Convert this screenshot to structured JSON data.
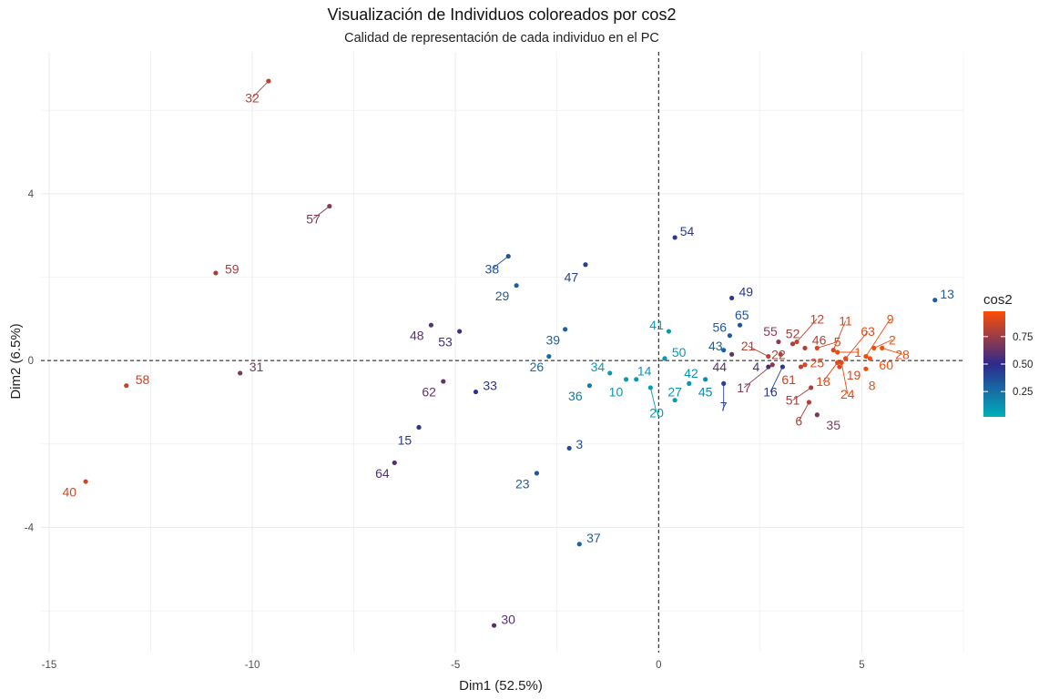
{
  "chart_data": {
    "type": "scatter",
    "title": "Visualización de Individuos coloreados por cos2",
    "subtitle": "Calidad de representación de cada individuo en el PC",
    "xlabel": "Dim1 (52.5%)",
    "ylabel": "Dim2 (6.5%)",
    "xlim": [
      -15.2,
      7.5
    ],
    "ylim": [
      -7.0,
      7.4
    ],
    "x_ticks": [
      -15,
      -10,
      -5,
      0,
      5
    ],
    "y_ticks": [
      -4,
      0,
      4
    ],
    "grid": true,
    "reference_lines": {
      "x": 0,
      "y": 0
    },
    "legend": {
      "title": "cos2",
      "position": "right",
      "ticks": [
        "0.25",
        "0.50",
        "0.75"
      ],
      "tick_values": [
        0.25,
        0.5,
        0.75
      ],
      "range": [
        0.02,
        0.98
      ],
      "gradient": [
        "#00AFBB",
        "#2E2A8C",
        "#FC4E07"
      ]
    },
    "points": [
      {
        "label": "32",
        "x": -9.6,
        "y": 6.7,
        "cos2": 0.82,
        "lx": -10.0,
        "ly": 6.3
      },
      {
        "label": "57",
        "x": -8.1,
        "y": 3.7,
        "cos2": 0.7,
        "lx": -8.5,
        "ly": 3.4
      },
      {
        "label": "59",
        "x": -10.9,
        "y": 2.1,
        "cos2": 0.78,
        "lx": -10.5,
        "ly": 2.2
      },
      {
        "label": "58",
        "x": -13.1,
        "y": -0.6,
        "cos2": 0.84,
        "lx": -12.7,
        "ly": -0.45
      },
      {
        "label": "31",
        "x": -10.3,
        "y": -0.3,
        "cos2": 0.68,
        "lx": -9.9,
        "ly": -0.15
      },
      {
        "label": "40",
        "x": -14.1,
        "y": -2.9,
        "cos2": 0.88,
        "lx": -14.5,
        "ly": -3.15
      },
      {
        "label": "38",
        "x": -3.7,
        "y": 2.5,
        "cos2": 0.35,
        "lx": -4.1,
        "ly": 2.2
      },
      {
        "label": "29",
        "x": -3.5,
        "y": 1.8,
        "cos2": 0.32,
        "lx": -3.85,
        "ly": 1.55
      },
      {
        "label": "47",
        "x": -1.8,
        "y": 2.3,
        "cos2": 0.42,
        "lx": -2.15,
        "ly": 2.0
      },
      {
        "label": "54",
        "x": 0.4,
        "y": 2.95,
        "cos2": 0.45,
        "lx": 0.7,
        "ly": 3.1
      },
      {
        "label": "48",
        "x": -5.6,
        "y": 0.85,
        "cos2": 0.6,
        "lx": -5.95,
        "ly": 0.6
      },
      {
        "label": "53",
        "x": -4.9,
        "y": 0.7,
        "cos2": 0.55,
        "lx": -5.25,
        "ly": 0.45
      },
      {
        "label": "39",
        "x": -2.3,
        "y": 0.75,
        "cos2": 0.3,
        "lx": -2.6,
        "ly": 0.5
      },
      {
        "label": "26",
        "x": -2.7,
        "y": 0.1,
        "cos2": 0.27,
        "lx": -3.0,
        "ly": -0.15
      },
      {
        "label": "62",
        "x": -5.3,
        "y": -0.5,
        "cos2": 0.62,
        "lx": -5.65,
        "ly": -0.75
      },
      {
        "label": "33",
        "x": -4.5,
        "y": -0.75,
        "cos2": 0.48,
        "lx": -4.15,
        "ly": -0.6
      },
      {
        "label": "34",
        "x": -1.2,
        "y": -0.3,
        "cos2": 0.1,
        "lx": -1.5,
        "ly": -0.15
      },
      {
        "label": "36",
        "x": -1.7,
        "y": -0.6,
        "cos2": 0.22,
        "lx": -2.05,
        "ly": -0.85
      },
      {
        "label": "10",
        "x": -0.8,
        "y": -0.45,
        "cos2": 0.1,
        "lx": -1.05,
        "ly": -0.75
      },
      {
        "label": "14",
        "x": -0.55,
        "y": -0.45,
        "cos2": 0.1,
        "lx": -0.35,
        "ly": -0.25
      },
      {
        "label": "41",
        "x": 0.25,
        "y": 0.7,
        "cos2": 0.1,
        "lx": -0.05,
        "ly": 0.85
      },
      {
        "label": "50",
        "x": 0.15,
        "y": 0.05,
        "cos2": 0.1,
        "lx": 0.5,
        "ly": 0.2
      },
      {
        "label": "20",
        "x": -0.2,
        "y": -0.65,
        "cos2": 0.08,
        "lx": -0.05,
        "ly": -1.25
      },
      {
        "label": "27",
        "x": 0.4,
        "y": -0.95,
        "cos2": 0.1,
        "lx": 0.4,
        "ly": -0.75
      },
      {
        "label": "42",
        "x": 0.75,
        "y": -0.55,
        "cos2": 0.12,
        "lx": 0.8,
        "ly": -0.3
      },
      {
        "label": "45",
        "x": 1.15,
        "y": -0.45,
        "cos2": 0.15,
        "lx": 1.15,
        "ly": -0.75
      },
      {
        "label": "43",
        "x": 1.6,
        "y": 0.25,
        "cos2": 0.3,
        "lx": 1.4,
        "ly": 0.35
      },
      {
        "label": "56",
        "x": 1.75,
        "y": 0.6,
        "cos2": 0.32,
        "lx": 1.5,
        "ly": 0.8
      },
      {
        "label": "65",
        "x": 2.0,
        "y": 0.85,
        "cos2": 0.35,
        "lx": 2.05,
        "ly": 1.1
      },
      {
        "label": "49",
        "x": 1.8,
        "y": 1.5,
        "cos2": 0.45,
        "lx": 2.15,
        "ly": 1.65
      },
      {
        "label": "44",
        "x": 1.8,
        "y": 0.15,
        "cos2": 0.6,
        "lx": 1.5,
        "ly": -0.15
      },
      {
        "label": "7",
        "x": 1.6,
        "y": -0.55,
        "cos2": 0.42,
        "lx": 1.6,
        "ly": -1.1
      },
      {
        "label": "4",
        "x": 2.7,
        "y": -0.15,
        "cos2": 0.55,
        "lx": 2.4,
        "ly": -0.15
      },
      {
        "label": "16",
        "x": 3.05,
        "y": -0.15,
        "cos2": 0.45,
        "lx": 2.75,
        "ly": -0.75
      },
      {
        "label": "17",
        "x": 2.8,
        "y": -0.1,
        "cos2": 0.72,
        "lx": 2.1,
        "ly": -0.65
      },
      {
        "label": "21",
        "x": 2.7,
        "y": 0.1,
        "cos2": 0.82,
        "lx": 2.2,
        "ly": 0.35
      },
      {
        "label": "22",
        "x": 3.0,
        "y": 0.15,
        "cos2": 0.8,
        "lx": 2.95,
        "ly": 0.15
      },
      {
        "label": "55",
        "x": 2.95,
        "y": 0.45,
        "cos2": 0.72,
        "lx": 2.75,
        "ly": 0.7
      },
      {
        "label": "52",
        "x": 3.3,
        "y": 0.4,
        "cos2": 0.78,
        "lx": 3.3,
        "ly": 0.65
      },
      {
        "label": "12",
        "x": 3.4,
        "y": 0.45,
        "cos2": 0.85,
        "lx": 3.9,
        "ly": 1.0
      },
      {
        "label": "46",
        "x": 3.6,
        "y": 0.3,
        "cos2": 0.8,
        "lx": 3.95,
        "ly": 0.5
      },
      {
        "label": "5",
        "x": 3.9,
        "y": 0.3,
        "cos2": 0.9,
        "lx": 4.4,
        "ly": 0.45
      },
      {
        "label": "11",
        "x": 4.3,
        "y": 0.25,
        "cos2": 0.9,
        "lx": 4.6,
        "ly": 0.95
      },
      {
        "label": "25",
        "x": 3.6,
        "y": -0.1,
        "cos2": 0.9,
        "lx": 3.9,
        "ly": -0.05
      },
      {
        "label": "1",
        "x": 4.4,
        "y": 0.2,
        "cos2": 0.95,
        "lx": 4.9,
        "ly": 0.2
      },
      {
        "label": "63",
        "x": 4.6,
        "y": 0.05,
        "cos2": 0.92,
        "lx": 5.15,
        "ly": 0.7
      },
      {
        "label": "9",
        "x": 5.1,
        "y": 0.1,
        "cos2": 0.95,
        "lx": 5.7,
        "ly": 1.0
      },
      {
        "label": "2",
        "x": 5.3,
        "y": 0.3,
        "cos2": 0.95,
        "lx": 5.75,
        "ly": 0.5
      },
      {
        "label": "28",
        "x": 5.5,
        "y": 0.3,
        "cos2": 0.97,
        "lx": 6.0,
        "ly": 0.15
      },
      {
        "label": "60",
        "x": 5.2,
        "y": 0.05,
        "cos2": 0.97,
        "lx": 5.6,
        "ly": -0.1
      },
      {
        "label": "19",
        "x": 4.45,
        "y": -0.15,
        "cos2": 0.9,
        "lx": 4.8,
        "ly": -0.35
      },
      {
        "label": "18",
        "x": 4.4,
        "y": -0.05,
        "cos2": 0.92,
        "lx": 4.05,
        "ly": -0.5
      },
      {
        "label": "8",
        "x": 5.1,
        "y": -0.2,
        "cos2": 0.95,
        "lx": 5.25,
        "ly": -0.6
      },
      {
        "label": "24",
        "x": 4.5,
        "y": -0.05,
        "cos2": 0.93,
        "lx": 4.65,
        "ly": -0.8
      },
      {
        "label": "61",
        "x": 3.5,
        "y": -0.15,
        "cos2": 0.85,
        "lx": 3.2,
        "ly": -0.45
      },
      {
        "label": "51",
        "x": 3.75,
        "y": -0.65,
        "cos2": 0.78,
        "lx": 3.3,
        "ly": -0.95
      },
      {
        "label": "6",
        "x": 3.7,
        "y": -1.0,
        "cos2": 0.8,
        "lx": 3.45,
        "ly": -1.45
      },
      {
        "label": "35",
        "x": 3.9,
        "y": -1.3,
        "cos2": 0.68,
        "lx": 4.3,
        "ly": -1.55
      },
      {
        "label": "13",
        "x": 6.8,
        "y": 1.45,
        "cos2": 0.32,
        "lx": 7.1,
        "ly": 1.6
      },
      {
        "label": "15",
        "x": -5.9,
        "y": -1.6,
        "cos2": 0.45,
        "lx": -6.25,
        "ly": -1.9
      },
      {
        "label": "3",
        "x": -2.2,
        "y": -2.1,
        "cos2": 0.38,
        "lx": -1.95,
        "ly": -2.0
      },
      {
        "label": "64",
        "x": -6.5,
        "y": -2.45,
        "cos2": 0.58,
        "lx": -6.8,
        "ly": -2.7
      },
      {
        "label": "23",
        "x": -3.0,
        "y": -2.7,
        "cos2": 0.33,
        "lx": -3.35,
        "ly": -2.95
      },
      {
        "label": "37",
        "x": -1.95,
        "y": -4.4,
        "cos2": 0.3,
        "lx": -1.6,
        "ly": -4.25
      },
      {
        "label": "30",
        "x": -4.05,
        "y": -6.35,
        "cos2": 0.6,
        "lx": -3.7,
        "ly": -6.2
      }
    ]
  }
}
